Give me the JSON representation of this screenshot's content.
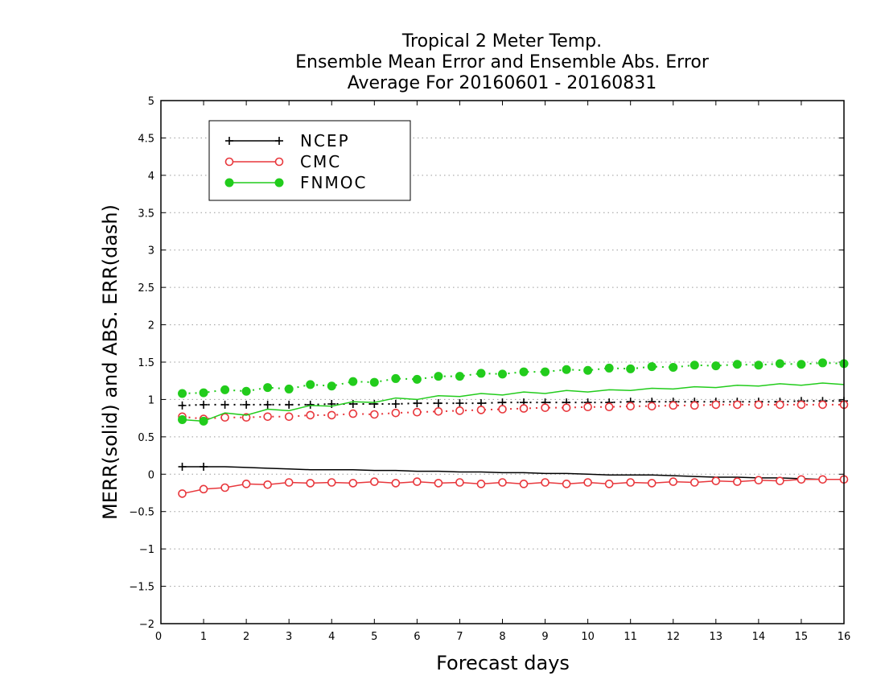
{
  "chart_data": {
    "type": "line",
    "title": [
      "Tropical 2 Meter Temp.",
      "Ensemble Mean Error and Ensemble Abs. Error",
      "Average For 20160601 - 20160831"
    ],
    "xlabel": "Forecast days",
    "ylabel": "MERR(solid) and ABS. ERR(dash)",
    "xlim": [
      0,
      16
    ],
    "ylim": [
      -2,
      5
    ],
    "xticks": [
      0,
      1,
      2,
      3,
      4,
      5,
      6,
      7,
      8,
      9,
      10,
      11,
      12,
      13,
      14,
      15,
      16
    ],
    "yticks": [
      -2,
      -1.5,
      -1,
      -0.5,
      0,
      0.5,
      1,
      1.5,
      2,
      2.5,
      3,
      3.5,
      4,
      4.5,
      5
    ],
    "ytick_labels": [
      "−2",
      "−1.5",
      "−1",
      "−0.5",
      "0",
      "0.5",
      "1",
      "1.5",
      "2",
      "2.5",
      "3",
      "3.5",
      "4",
      "4.5",
      "5"
    ],
    "grid": "horizontal dotted",
    "legend_position": "top-left",
    "x": [
      0.5,
      1,
      1.5,
      2,
      2.5,
      3,
      3.5,
      4,
      4.5,
      5,
      5.5,
      6,
      6.5,
      7,
      7.5,
      8,
      8.5,
      9,
      9.5,
      10,
      10.5,
      11,
      11.5,
      12,
      12.5,
      13,
      13.5,
      14,
      14.5,
      15,
      15.5,
      16
    ],
    "series": [
      {
        "name": "NCEP",
        "color": "#000000",
        "marker": "plus",
        "merr": [
          0.1,
          0.1,
          0.1,
          0.09,
          0.08,
          0.07,
          0.06,
          0.06,
          0.06,
          0.05,
          0.05,
          0.04,
          0.04,
          0.03,
          0.03,
          0.02,
          0.02,
          0.01,
          0.01,
          0.0,
          -0.01,
          -0.01,
          -0.01,
          -0.02,
          -0.03,
          -0.04,
          -0.04,
          -0.05,
          -0.05,
          -0.06,
          -0.07,
          -0.07
        ],
        "abs_err": [
          0.92,
          0.93,
          0.93,
          0.93,
          0.93,
          0.93,
          0.93,
          0.94,
          0.94,
          0.94,
          0.94,
          0.95,
          0.95,
          0.95,
          0.95,
          0.96,
          0.96,
          0.96,
          0.96,
          0.96,
          0.96,
          0.97,
          0.97,
          0.97,
          0.97,
          0.97,
          0.97,
          0.97,
          0.97,
          0.98,
          0.98,
          0.98
        ]
      },
      {
        "name": "CMC",
        "color": "#e8373c",
        "marker": "open-circle",
        "merr": [
          -0.26,
          -0.2,
          -0.18,
          -0.13,
          -0.14,
          -0.11,
          -0.12,
          -0.11,
          -0.12,
          -0.1,
          -0.12,
          -0.1,
          -0.12,
          -0.11,
          -0.13,
          -0.11,
          -0.13,
          -0.11,
          -0.13,
          -0.11,
          -0.13,
          -0.11,
          -0.12,
          -0.1,
          -0.11,
          -0.09,
          -0.1,
          -0.08,
          -0.09,
          -0.07,
          -0.07,
          -0.07
        ],
        "abs_err": [
          0.77,
          0.74,
          0.76,
          0.76,
          0.77,
          0.77,
          0.79,
          0.79,
          0.81,
          0.8,
          0.82,
          0.83,
          0.84,
          0.85,
          0.86,
          0.87,
          0.88,
          0.89,
          0.89,
          0.9,
          0.9,
          0.91,
          0.91,
          0.92,
          0.92,
          0.93,
          0.93,
          0.93,
          0.93,
          0.93,
          0.93,
          0.93
        ]
      },
      {
        "name": "FNMOC",
        "color": "#22cc1c",
        "marker": "filled-circle",
        "merr": [
          0.73,
          0.71,
          0.82,
          0.79,
          0.87,
          0.85,
          0.92,
          0.91,
          0.97,
          0.96,
          1.02,
          1.0,
          1.05,
          1.04,
          1.08,
          1.06,
          1.1,
          1.08,
          1.12,
          1.1,
          1.13,
          1.12,
          1.15,
          1.14,
          1.17,
          1.16,
          1.19,
          1.18,
          1.21,
          1.19,
          1.22,
          1.2
        ],
        "abs_err": [
          1.08,
          1.09,
          1.13,
          1.11,
          1.16,
          1.14,
          1.2,
          1.18,
          1.24,
          1.23,
          1.28,
          1.27,
          1.31,
          1.31,
          1.35,
          1.34,
          1.37,
          1.37,
          1.4,
          1.39,
          1.42,
          1.41,
          1.44,
          1.43,
          1.46,
          1.45,
          1.47,
          1.46,
          1.48,
          1.47,
          1.49,
          1.48
        ]
      }
    ]
  }
}
